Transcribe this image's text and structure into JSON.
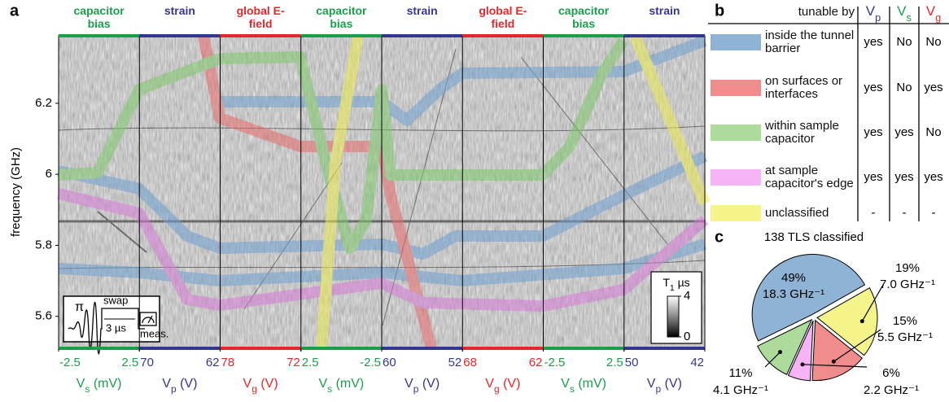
{
  "chart_data": [
    {
      "type": "sweep",
      "label": "a",
      "ylabel": "frequency (GHz)",
      "ylim": [
        5.51,
        6.39
      ],
      "yticks": [
        5.6,
        5.8,
        6,
        6.2
      ],
      "segments": [
        {
          "title": "capacitor bias",
          "color": "#1a9e4a",
          "xlabel": "Vs (mV)",
          "xlim": [
            -2.5,
            2.5
          ],
          "xticks": [
            -2.5,
            2.5
          ]
        },
        {
          "title": "strain",
          "color": "#35368f",
          "xlabel": "Vp (V)",
          "xlim": [
            70,
            62
          ],
          "xticks": [
            70,
            62
          ]
        },
        {
          "title": "global E-field",
          "color": "#e5262b",
          "xlabel": "Vg (V)",
          "xlim": [
            78,
            72
          ],
          "xticks": [
            78,
            72
          ]
        },
        {
          "title": "capacitor bias",
          "color": "#1a9e4a",
          "xlabel": "Vs (mV)",
          "xlim": [
            2.5,
            -2.5
          ],
          "xticks": [
            2.5,
            -2.5
          ]
        },
        {
          "title": "strain",
          "color": "#35368f",
          "xlabel": "Vp (V)",
          "xlim": [
            60,
            52
          ],
          "xticks": [
            60,
            52
          ]
        },
        {
          "title": "global E-field",
          "color": "#e5262b",
          "xlabel": "Vg (V)",
          "xlim": [
            68,
            62
          ],
          "xticks": [
            68,
            62
          ]
        },
        {
          "title": "capacitor bias",
          "color": "#1a9e4a",
          "xlabel": "Vs (mV)",
          "xlim": [
            -2.5,
            2.5
          ],
          "xticks": [
            -2.5,
            2.5
          ]
        },
        {
          "title": "strain",
          "color": "#35368f",
          "xlabel": "Vp (V)",
          "xlim": [
            50,
            42
          ],
          "xticks": [
            50,
            42
          ]
        }
      ],
      "colorbar": {
        "label": "T1 µs",
        "lim": [
          0,
          4
        ],
        "ticks": [
          0,
          4
        ]
      },
      "inset": {
        "pulse": "π",
        "gate": "swap",
        "delay": "3 µs",
        "readout": "meas."
      }
    },
    {
      "type": "pie",
      "label": "c",
      "title": "138 TLS classified",
      "values": [
        49,
        19,
        15,
        6,
        11
      ],
      "value_labels": [
        "49%",
        "19%",
        "15%",
        "6%",
        "11%"
      ],
      "annotations": [
        "18.3 GHz⁻¹",
        "7.0 GHz⁻¹",
        "5.5 GHz⁻¹",
        "2.2 GHz⁻¹",
        "4.1 GHz⁻¹"
      ],
      "colors": [
        "#8fb3d5",
        "#f4f48a",
        "#f08c8c",
        "#f6b4f6",
        "#acdb9c"
      ]
    }
  ],
  "table": {
    "label": "b",
    "header": [
      "tunable by",
      "Vp",
      "Vs",
      "Vg"
    ],
    "header_colors": [
      "#111111",
      "#35368f",
      "#1a9e4a",
      "#e5262b"
    ],
    "rows": [
      [
        "inside the tunnel barrier",
        "yes",
        "No",
        "No"
      ],
      [
        "on surfaces or interfaces",
        "yes",
        "No",
        "yes"
      ],
      [
        "within sample capacitor",
        "yes",
        "yes",
        "No"
      ],
      [
        "at sample capacitor's edge",
        "yes",
        "yes",
        "yes"
      ],
      [
        "unclassified",
        "-",
        "-",
        "-"
      ]
    ],
    "colors": [
      "#8fb3d5",
      "#f08c8c",
      "#acdb9c",
      "#f6b4f6",
      "#f4f48a"
    ]
  }
}
